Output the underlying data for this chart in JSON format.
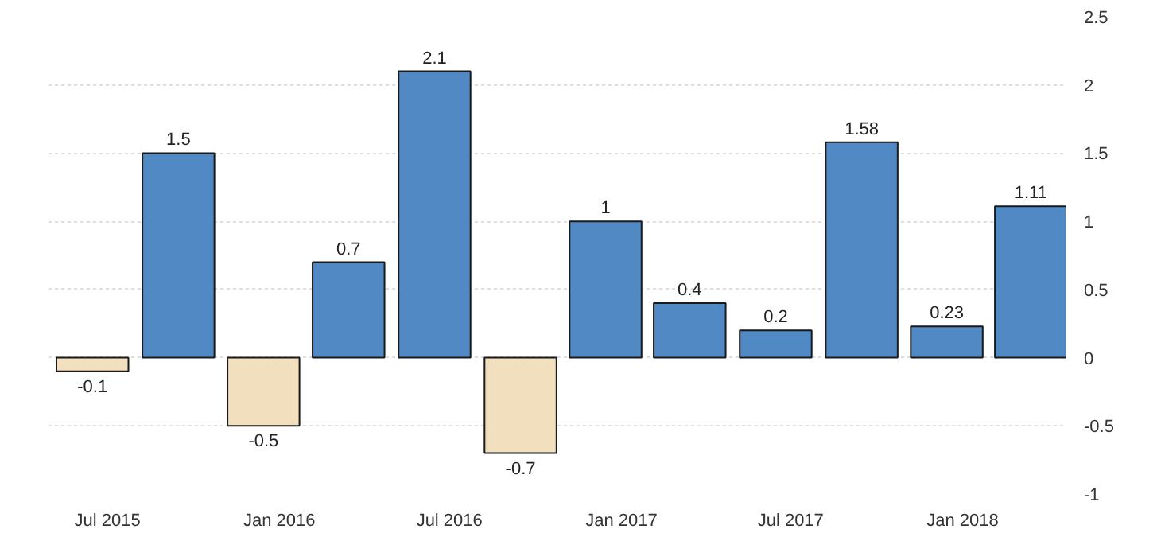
{
  "chart_data": {
    "type": "bar",
    "x": [
      "2015-06-15",
      "2015-09-15",
      "2015-12-15",
      "2016-03-15",
      "2016-06-15",
      "2016-09-15",
      "2016-12-15",
      "2017-03-15",
      "2017-06-15",
      "2017-09-15",
      "2017-12-15",
      "2018-03-15"
    ],
    "values": [
      -0.1,
      1.5,
      -0.5,
      0.7,
      2.1,
      -0.7,
      1,
      0.4,
      0.2,
      1.58,
      0.23,
      1.11
    ],
    "colors": [
      "#f2dfbd",
      "#5089c3",
      "#f2dfbd",
      "#5089c3",
      "#5089c3",
      "#f2dfbd",
      "#5089c3",
      "#5089c3",
      "#5089c3",
      "#5089c3",
      "#5089c3",
      "#5089c3"
    ],
    "data_labels": true,
    "xlim": [
      "2015-04-29",
      "2018-04-22"
    ],
    "xticks": [
      {
        "value": "2015-07",
        "label": "Jul 2015"
      },
      {
        "value": "2016-01",
        "label": "Jan 2016"
      },
      {
        "value": "2016-07",
        "label": "Jul 2016"
      },
      {
        "value": "2017-01",
        "label": "Jan 2017"
      },
      {
        "value": "2017-07",
        "label": "Jul 2017"
      },
      {
        "value": "2018-01",
        "label": "Jan 2018"
      }
    ],
    "ylim": [
      -1,
      2.5
    ],
    "yticks": [
      -1,
      -0.5,
      0,
      0.5,
      1,
      1.5,
      2,
      2.5
    ],
    "grid": "y"
  }
}
